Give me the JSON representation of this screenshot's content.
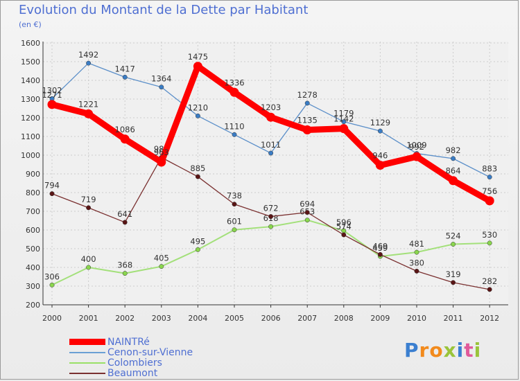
{
  "title": "Evolution du Montant de la Dette par Habitant",
  "subtitle": "(en €)",
  "logo_text": "Proxiti",
  "chart_data": {
    "type": "line",
    "x": [
      "2000",
      "2001",
      "2002",
      "2003",
      "2004",
      "2005",
      "2006",
      "2007",
      "2008",
      "2009",
      "2010",
      "2011",
      "2012"
    ],
    "ylim": [
      200,
      1600
    ],
    "yticks": [
      200,
      300,
      400,
      500,
      600,
      700,
      800,
      900,
      1000,
      1100,
      1200,
      1300,
      1400,
      1500,
      1600
    ],
    "grid": true,
    "legend_position": "bottom-left",
    "series": [
      {
        "name": "NAINTRé",
        "color": "#ff0000",
        "values": [
          1271,
          1221,
          1086,
          963,
          1475,
          1336,
          1203,
          1135,
          1142,
          946,
          992,
          864,
          756
        ]
      },
      {
        "name": "Cenon-sur-Vienne",
        "color": "#6aa0d4",
        "values": [
          1302,
          1492,
          1417,
          1364,
          1210,
          1110,
          1011,
          1278,
          1179,
          1129,
          1009,
          982,
          883
        ]
      },
      {
        "name": "Colombiers",
        "color": "#99e066",
        "values": [
          306,
          400,
          368,
          405,
          495,
          601,
          618,
          653,
          596,
          459,
          481,
          524,
          530
        ]
      },
      {
        "name": "Beaumont",
        "color": "#7a3030",
        "values": [
          794,
          719,
          641,
          988,
          885,
          738,
          672,
          694,
          574,
          469,
          380,
          319,
          282
        ]
      }
    ]
  }
}
